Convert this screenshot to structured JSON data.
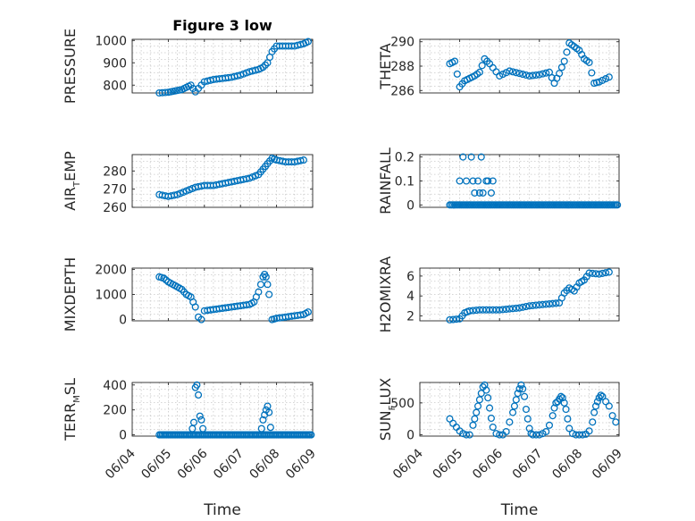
{
  "chart_data": [
    {
      "id": "pressure",
      "type": "scatter",
      "title": "Figure 3 low",
      "ylabel": "PRESSURE",
      "xlim": [
        "06/04",
        "06/09"
      ],
      "ylim": [
        765,
        1005
      ],
      "yticks": [
        "800",
        "900",
        "1000"
      ],
      "xticks": [],
      "xlabel": "",
      "x": [
        "06/04 18:00",
        "06/05 00:00",
        "06/05 03:00",
        "06/05 06:00",
        "06/05 09:00",
        "06/05 12:00",
        "06/05 15:00",
        "06/05 18:00",
        "06/06 00:00",
        "06/06 06:00",
        "06/06 12:00",
        "06/06 18:00",
        "06/07 00:00",
        "06/07 06:00",
        "06/07 12:00",
        "06/07 15:00",
        "06/07 18:00",
        "06/07 21:00",
        "06/08 00:00",
        "06/08 06:00",
        "06/08 12:00",
        "06/08 18:00",
        "06/08 21:00"
      ],
      "y": [
        765,
        768,
        772,
        776,
        780,
        790,
        800,
        770,
        815,
        825,
        830,
        835,
        845,
        860,
        870,
        880,
        900,
        950,
        975,
        975,
        975,
        985,
        995
      ]
    },
    {
      "id": "theta",
      "type": "scatter",
      "title": "",
      "ylabel": "THETA",
      "xlim": [
        "06/04",
        "06/09"
      ],
      "ylim": [
        285.8,
        290.2
      ],
      "yticks": [
        "286",
        "288",
        "290"
      ],
      "xticks": [],
      "xlabel": "",
      "x": [
        "06/04 18:00",
        "06/04 21:00",
        "06/05 00:00",
        "06/05 03:00",
        "06/05 06:00",
        "06/05 09:00",
        "06/05 12:00",
        "06/05 15:00",
        "06/05 18:00",
        "06/06 00:00",
        "06/06 06:00",
        "06/06 12:00",
        "06/06 18:00",
        "06/07 00:00",
        "06/07 06:00",
        "06/07 09:00",
        "06/07 12:00",
        "06/07 15:00",
        "06/07 18:00",
        "06/07 21:00",
        "06/08 00:00",
        "06/08 03:00",
        "06/08 06:00",
        "06/08 09:00",
        "06/08 12:00",
        "06/08 18:00"
      ],
      "y": [
        288.2,
        288.4,
        286.3,
        286.8,
        287.0,
        287.2,
        287.5,
        288.6,
        288.2,
        287.2,
        287.6,
        287.4,
        287.2,
        287.3,
        287.5,
        286.6,
        287.4,
        288.4,
        289.9,
        289.6,
        289.3,
        288.6,
        288.3,
        286.6,
        286.7,
        287.1
      ]
    },
    {
      "id": "air_temp",
      "type": "scatter",
      "title": "",
      "ylabel": "AIR_TEMP",
      "ylabel_main": "AIR",
      "ylabel_sub": "T",
      "ylabel_rest": "EMP",
      "xlim": [
        "06/04",
        "06/09"
      ],
      "ylim": [
        260,
        289
      ],
      "yticks": [
        "260",
        "270",
        "280"
      ],
      "xticks": [],
      "xlabel": "",
      "x": [
        "06/04 18:00",
        "06/05 00:00",
        "06/05 06:00",
        "06/05 12:00",
        "06/05 18:00",
        "06/06 00:00",
        "06/06 06:00",
        "06/06 12:00",
        "06/06 18:00",
        "06/07 00:00",
        "06/07 06:00",
        "06/07 12:00",
        "06/07 15:00",
        "06/07 18:00",
        "06/07 21:00",
        "06/08 00:00",
        "06/08 06:00",
        "06/08 12:00",
        "06/08 18:00"
      ],
      "y": [
        267,
        266,
        267,
        269,
        271,
        272,
        272,
        273,
        274,
        275,
        276,
        278,
        281,
        284,
        287,
        286,
        285,
        285,
        286
      ]
    },
    {
      "id": "rainfall",
      "type": "scatter",
      "title": "",
      "ylabel": "RAINFALL",
      "xlim": [
        "06/04",
        "06/09"
      ],
      "ylim": [
        -0.01,
        0.21
      ],
      "yticks": [
        "0",
        "0.1",
        "0.2"
      ],
      "xticks": [],
      "xlabel": "",
      "baseline": {
        "from": "06/04 18:00",
        "to": "06/08 23:00",
        "value": 0
      },
      "x": [
        "06/05 00:00",
        "06/05 02:00",
        "06/05 04:00",
        "06/05 07:00",
        "06/05 08:00",
        "06/05 09:00",
        "06/05 11:00",
        "06/05 12:00",
        "06/05 13:00",
        "06/05 14:00",
        "06/05 16:00",
        "06/05 17:00",
        "06/05 19:00",
        "06/05 20:00"
      ],
      "y": [
        0.1,
        0.2,
        0.1,
        0.2,
        0.1,
        0.05,
        0.1,
        0.05,
        0.2,
        0.05,
        0.1,
        0.1,
        0.05,
        0.1
      ]
    },
    {
      "id": "mixdepth",
      "type": "scatter",
      "title": "",
      "ylabel": "MIXDEPTH",
      "xlim": [
        "06/04",
        "06/09"
      ],
      "ylim": [
        -50,
        2050
      ],
      "yticks": [
        "0",
        "1000",
        "2000"
      ],
      "xticks": [],
      "xlabel": "",
      "x": [
        "06/04 18:00",
        "06/04 21:00",
        "06/05 00:00",
        "06/05 03:00",
        "06/05 06:00",
        "06/05 09:00",
        "06/05 12:00",
        "06/05 15:00",
        "06/05 18:00",
        "06/05 20:00",
        "06/05 22:00",
        "06/06 00:00",
        "06/06 06:00",
        "06/06 12:00",
        "06/06 18:00",
        "06/07 00:00",
        "06/07 06:00",
        "06/07 09:00",
        "06/07 12:00",
        "06/07 15:00",
        "06/07 16:00",
        "06/07 17:00",
        "06/07 18:00",
        "06/07 19:00",
        "06/07 21:00",
        "06/08 00:00",
        "06/08 06:00",
        "06/08 12:00",
        "06/08 18:00",
        "06/08 21:00"
      ],
      "y": [
        1700,
        1650,
        1500,
        1400,
        1300,
        1200,
        1000,
        900,
        500,
        100,
        0,
        350,
        400,
        450,
        500,
        550,
        600,
        700,
        1100,
        1700,
        1800,
        1700,
        1400,
        1000,
        0,
        50,
        100,
        150,
        200,
        300
      ]
    },
    {
      "id": "h2omixra",
      "type": "scatter",
      "title": "",
      "ylabel": "H2OMIXRA",
      "xlim": [
        "06/04",
        "06/09"
      ],
      "ylim": [
        1.5,
        6.8
      ],
      "yticks": [
        "2",
        "4",
        "6"
      ],
      "xticks": [],
      "xlabel": "",
      "x": [
        "06/04 18:00",
        "06/05 00:00",
        "06/05 03:00",
        "06/05 06:00",
        "06/05 12:00",
        "06/05 18:00",
        "06/06 00:00",
        "06/06 06:00",
        "06/06 12:00",
        "06/06 18:00",
        "06/07 00:00",
        "06/07 06:00",
        "06/07 12:00",
        "06/07 15:00",
        "06/07 18:00",
        "06/07 21:00",
        "06/08 00:00",
        "06/08 03:00",
        "06/08 06:00",
        "06/08 12:00",
        "06/08 18:00"
      ],
      "y": [
        1.6,
        1.7,
        2.3,
        2.5,
        2.6,
        2.6,
        2.6,
        2.7,
        2.8,
        3.0,
        3.1,
        3.2,
        3.3,
        4.3,
        4.8,
        4.5,
        5.3,
        5.6,
        6.3,
        6.2,
        6.4
      ]
    },
    {
      "id": "terr_msl",
      "type": "scatter",
      "title": "",
      "ylabel": "TERR_MSL",
      "ylabel_main": "TERR",
      "ylabel_sub": "M",
      "ylabel_rest": "SL",
      "xlim": [
        "06/04",
        "06/09"
      ],
      "ylim": [
        -10,
        420
      ],
      "yticks": [
        "0",
        "200",
        "400"
      ],
      "xticks": [
        "06/04",
        "06/05",
        "06/06",
        "06/07",
        "06/08",
        "06/09"
      ],
      "xlabel": "Time",
      "baseline": {
        "from": "06/04 18:00",
        "to": "06/08 23:00",
        "value": 0
      },
      "x": [
        "06/05 16:00",
        "06/05 17:00",
        "06/05 18:00",
        "06/05 19:00",
        "06/05 20:00",
        "06/05 21:00",
        "06/05 22:00",
        "06/05 23:00",
        "06/07 14:00",
        "06/07 15:00",
        "06/07 16:00",
        "06/07 17:00",
        "06/07 18:00",
        "06/07 19:00",
        "06/07 20:00"
      ],
      "y": [
        50,
        100,
        380,
        400,
        320,
        150,
        120,
        50,
        50,
        120,
        160,
        200,
        230,
        180,
        60
      ]
    },
    {
      "id": "sun_flux",
      "type": "scatter",
      "title": "",
      "ylabel": "SUN_FLUX",
      "ylabel_main": "SUN",
      "ylabel_sub": "F",
      "ylabel_rest": "LUX",
      "xlim": [
        "06/04",
        "06/09"
      ],
      "ylim": [
        -20,
        820
      ],
      "yticks": [
        "0",
        "500"
      ],
      "xticks": [
        "06/04",
        "06/05",
        "06/06",
        "06/07",
        "06/08",
        "06/09"
      ],
      "xlabel": "Time",
      "x": [
        "06/04 18:00",
        "06/04 20:00",
        "06/04 22:00",
        "06/05 00:00",
        "06/05 02:00",
        "06/05 04:00",
        "06/05 06:00",
        "06/05 08:00",
        "06/05 09:00",
        "06/05 10:00",
        "06/05 11:00",
        "06/05 12:00",
        "06/05 13:00",
        "06/05 14:00",
        "06/05 15:00",
        "06/05 16:00",
        "06/05 17:00",
        "06/05 18:00",
        "06/05 19:00",
        "06/05 20:00",
        "06/05 22:00",
        "06/06 00:00",
        "06/06 02:00",
        "06/06 04:00",
        "06/06 06:00",
        "06/06 08:00",
        "06/06 09:00",
        "06/06 10:00",
        "06/06 11:00",
        "06/06 12:00",
        "06/06 13:00",
        "06/06 14:00",
        "06/06 15:00",
        "06/06 16:00",
        "06/06 17:00",
        "06/06 18:00",
        "06/06 19:00",
        "06/06 20:00",
        "06/06 22:00",
        "06/07 00:00",
        "06/07 02:00",
        "06/07 04:00",
        "06/07 06:00",
        "06/07 08:00",
        "06/07 09:00",
        "06/07 10:00",
        "06/07 11:00",
        "06/07 12:00",
        "06/07 13:00",
        "06/07 14:00",
        "06/07 15:00",
        "06/07 16:00",
        "06/07 17:00",
        "06/07 18:00",
        "06/07 20:00",
        "06/07 22:00",
        "06/08 00:00",
        "06/08 02:00",
        "06/08 04:00",
        "06/08 06:00",
        "06/08 08:00",
        "06/08 09:00",
        "06/08 10:00",
        "06/08 11:00",
        "06/08 12:00",
        "06/08 13:00",
        "06/08 14:00",
        "06/08 16:00",
        "06/08 18:00",
        "06/08 20:00",
        "06/08 22:00"
      ],
      "y": [
        250,
        180,
        120,
        60,
        20,
        0,
        0,
        150,
        250,
        350,
        450,
        550,
        650,
        750,
        780,
        700,
        580,
        420,
        260,
        120,
        20,
        0,
        0,
        50,
        200,
        350,
        450,
        550,
        650,
        720,
        780,
        720,
        600,
        400,
        250,
        100,
        20,
        0,
        0,
        0,
        20,
        50,
        150,
        300,
        420,
        500,
        520,
        560,
        600,
        580,
        500,
        400,
        250,
        100,
        20,
        0,
        0,
        0,
        10,
        60,
        200,
        350,
        450,
        520,
        580,
        620,
        600,
        520,
        450,
        300,
        200
      ]
    }
  ]
}
